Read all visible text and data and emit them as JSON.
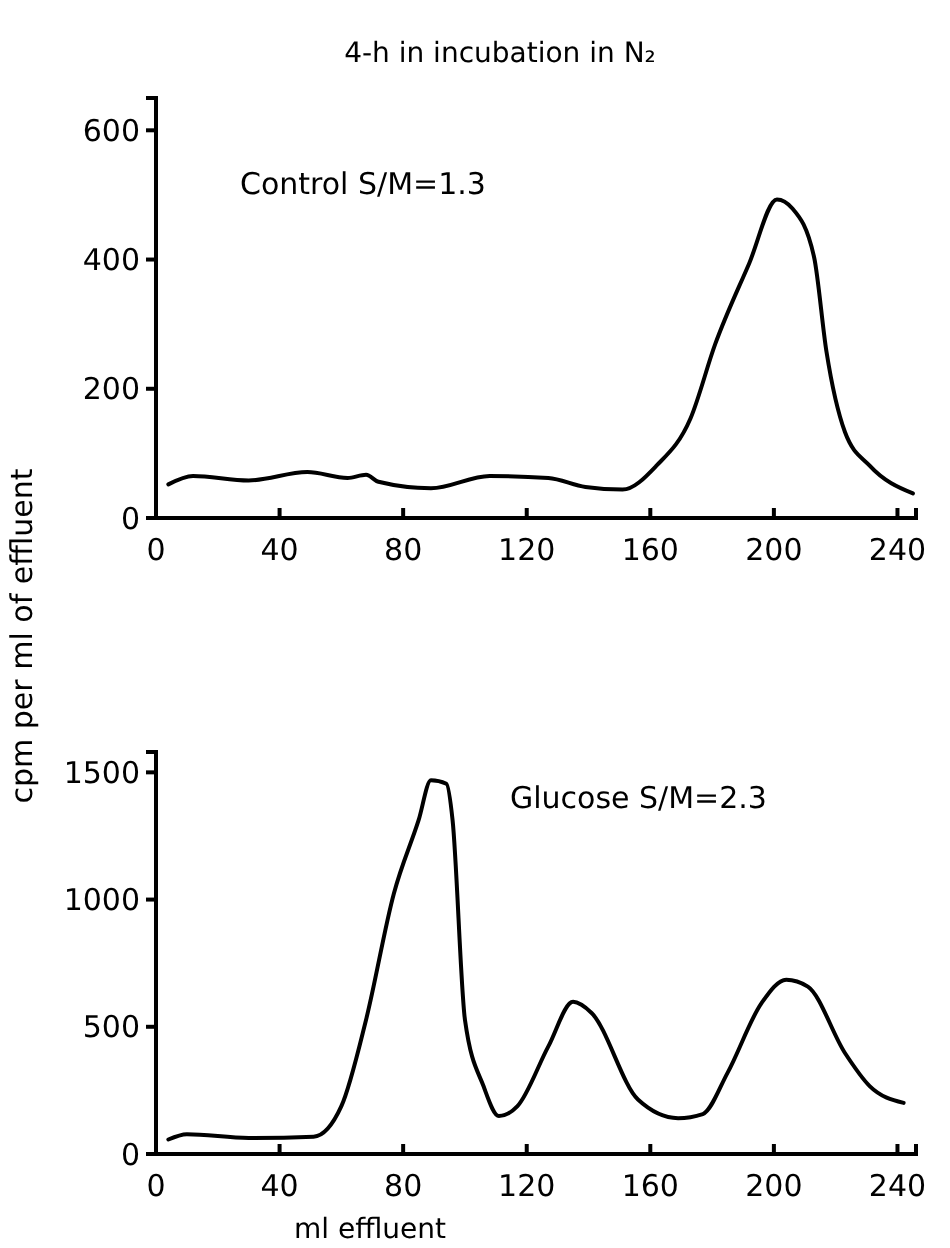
{
  "chart_data": [
    {
      "type": "line",
      "title": "4-h in incubation in N₂",
      "ylabel": "cpm per ml of effluent",
      "annotations": [
        "Control S/M=1.3"
      ],
      "xlim": [
        0,
        246
      ],
      "ylim": [
        0,
        650
      ],
      "xticks": [
        0,
        40,
        80,
        120,
        160,
        200,
        240
      ],
      "yticks": [
        0,
        200,
        400,
        600
      ],
      "series": [
        {
          "color": "#000000",
          "x": [
            4,
            12,
            30,
            49,
            62,
            68,
            72,
            89,
            108,
            127,
            139,
            151,
            162,
            173,
            181,
            192,
            201,
            206,
            213,
            217,
            223,
            231,
            245
          ],
          "values": [
            52,
            65,
            58,
            71,
            62,
            67,
            56,
            46,
            65,
            62,
            48,
            44,
            81,
            154,
            269,
            394,
            493,
            479,
            404,
            258,
            133,
            81,
            38
          ]
        }
      ]
    },
    {
      "type": "line",
      "xlabel": "ml effluent",
      "annotations": [
        "Glucose S/M=2.3"
      ],
      "xlim": [
        0,
        246
      ],
      "ylim": [
        0,
        1580
      ],
      "xticks": [
        0,
        40,
        80,
        120,
        160,
        200,
        240
      ],
      "yticks": [
        0,
        500,
        1000,
        1500
      ],
      "series": [
        {
          "color": "#000000",
          "x": [
            4,
            10,
            30,
            51,
            60,
            68,
            77,
            85,
            89,
            94,
            96,
            100,
            106,
            111,
            117,
            127,
            135,
            141,
            156,
            169,
            177,
            185,
            196,
            204,
            211,
            223,
            231,
            242
          ],
          "values": [
            57,
            78,
            63,
            68,
            188,
            528,
            1024,
            1312,
            1469,
            1455,
            1312,
            528,
            267,
            149,
            188,
            423,
            598,
            554,
            214,
            141,
            157,
            319,
            593,
            685,
            658,
            397,
            267,
            201
          ]
        }
      ]
    }
  ]
}
